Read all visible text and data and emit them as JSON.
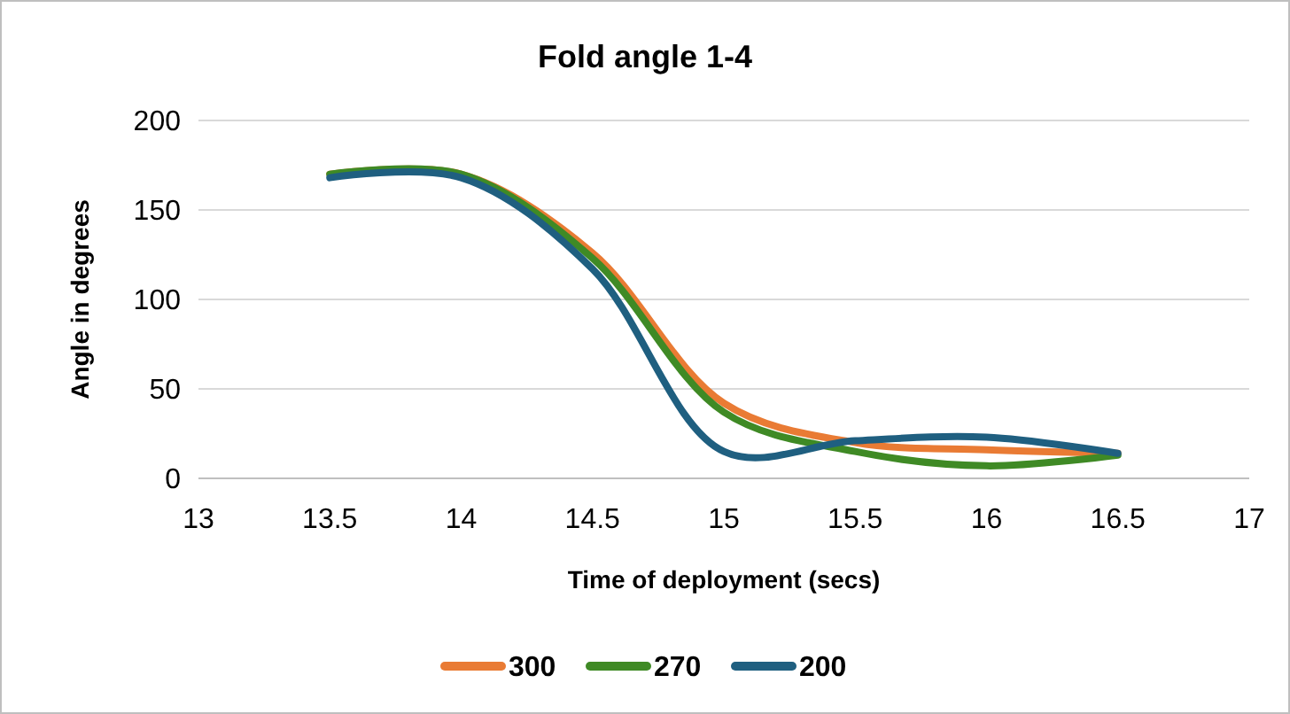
{
  "chart_data": {
    "type": "line",
    "title": "Fold angle 1-4",
    "xlabel": "Time of deployment (secs)",
    "ylabel": "Angle in degrees",
    "x": [
      13.5,
      14,
      14.5,
      15,
      15.5,
      16,
      16.5
    ],
    "series": [
      {
        "name": "300",
        "color": "#e97b34",
        "values": [
          170,
          170,
          126,
          42,
          20,
          16,
          14
        ]
      },
      {
        "name": "270",
        "color": "#3f8a25",
        "values": [
          170,
          170,
          123,
          37,
          15,
          7,
          13
        ]
      },
      {
        "name": "200",
        "color": "#1f5f80",
        "values": [
          168,
          168,
          117,
          15,
          21,
          23,
          14
        ]
      }
    ],
    "xlim": [
      13,
      17
    ],
    "xticks": [
      13,
      13.5,
      14,
      14.5,
      15,
      15.5,
      16,
      16.5,
      17
    ],
    "ylim": [
      0,
      200
    ],
    "yticks": [
      0,
      50,
      100,
      150,
      200
    ],
    "grid": "y",
    "legend": "bottom",
    "marker": "none",
    "line_style": "solid"
  }
}
